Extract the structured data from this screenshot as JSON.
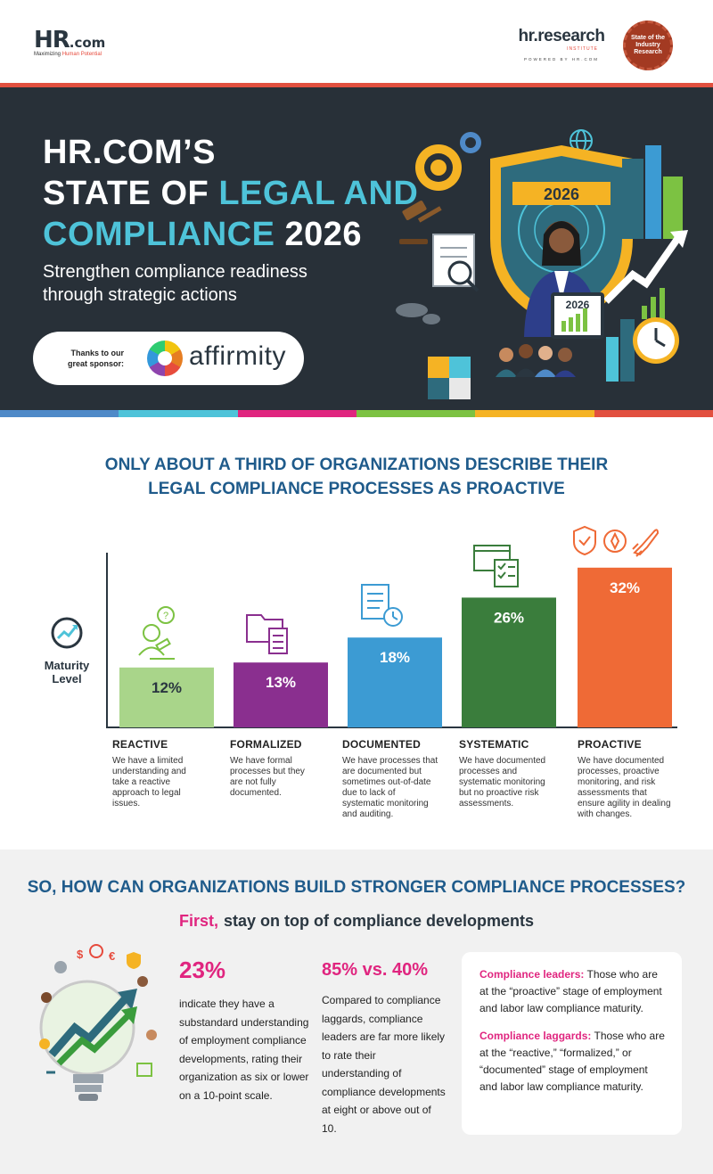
{
  "header": {
    "logo_main": "HR",
    "logo_suffix": ".com",
    "logo_tag_prefix": "Maximizing ",
    "logo_tag_accent": "Human Potential",
    "research_name": "hr.research",
    "research_inst": "INSTITUTE",
    "research_powered": "POWERED BY HR.COM",
    "seal_text": "State of the Industry Research"
  },
  "hero": {
    "title_line1": "HR.COM’S",
    "title_line2_a": "STATE OF ",
    "title_line2_b": "LEGAL AND",
    "title_line3_a": "COMPLIANCE",
    "title_line3_b": " 2026",
    "subtitle": "Strengthen compliance readiness through strategic actions",
    "sponsor_thanks": "Thanks to our great sponsor:",
    "sponsor_name": "affirmity",
    "badge_year": "2026",
    "tablet_year": "2026"
  },
  "strip_colors": [
    "#4f8ac8",
    "#4ec3d9",
    "#e0257f",
    "#7cc242",
    "#f5b324",
    "#e2503f"
  ],
  "chart_section": {
    "title_line1": "ONLY ABOUT A THIRD OF ORGANIZATIONS DESCRIBE THEIR",
    "title_line2": "LEGAL COMPLIANCE PROCESSES AS PROACTIVE",
    "maturity_label": "Maturity Level"
  },
  "chart_data": {
    "type": "bar",
    "title": "ONLY ABOUT A THIRD OF ORGANIZATIONS DESCRIBE THEIR LEGAL COMPLIANCE PROCESSES AS PROACTIVE",
    "ylabel": "Maturity Level",
    "categories": [
      "REACTIVE",
      "FORMALIZED",
      "DOCUMENTED",
      "SYSTEMATIC",
      "PROACTIVE"
    ],
    "values": [
      12,
      13,
      18,
      26,
      32
    ],
    "value_labels": [
      "12%",
      "13%",
      "18%",
      "26%",
      "32%"
    ],
    "colors": [
      "#a9d58a",
      "#8a2f8f",
      "#3c9bd3",
      "#3a7d3c",
      "#ef6a36"
    ],
    "label_colors": [
      "#2a3640",
      "#ffffff",
      "#ffffff",
      "#ffffff",
      "#ffffff"
    ],
    "ylim": [
      0,
      35
    ],
    "descriptions": [
      "We have a limited understanding and take a reactive approach to legal issues.",
      "We have formal processes but they are not fully documented.",
      "We have processes that are documented but sometimes out-of-date due to lack of systematic monitoring and auditing.",
      "We have documented processes and systematic monitoring but no proactive risk assessments.",
      "We have documented processes, proactive monitoring, and risk assessments that ensure agility in dealing with changes."
    ]
  },
  "lower": {
    "question": "SO, HOW CAN ORGANIZATIONS BUILD STRONGER COMPLIANCE PROCESSES?",
    "first_label": "First,",
    "first_text": "stay on top of compliance developments",
    "stat1_value": "23%",
    "stat1_text": "indicate they have a substandard understanding of employment compliance developments, rating their organization as six or lower on a 10-point scale.",
    "stat2_value": "85% vs. 40%",
    "stat2_text": "Compared to compliance laggards, compliance leaders are far more likely to rate their understanding of compliance developments at eight or above out of 10.",
    "def1_term": "Compliance leaders:",
    "def1_text": " Those who are at the “proactive” stage of employment and labor law compliance maturity.",
    "def2_term": "Compliance laggards:",
    "def2_text": " Those who are at the “reactive,” “formalized,” or “documented” stage of employment and labor law compliance maturity."
  },
  "icons": [
    "gear-icon",
    "globe-icon",
    "gavel-icon",
    "shield-icon",
    "magnifier-document-icon",
    "puzzle-icon",
    "clock-icon",
    "trend-arrow-icon",
    "question-person-icon",
    "folder-checklist-icon",
    "document-clock-icon",
    "dashboard-checklist-icon",
    "shield-check-icon",
    "compass-icon",
    "rocket-icon",
    "lightbulb-icon",
    "trend-up-icon"
  ]
}
